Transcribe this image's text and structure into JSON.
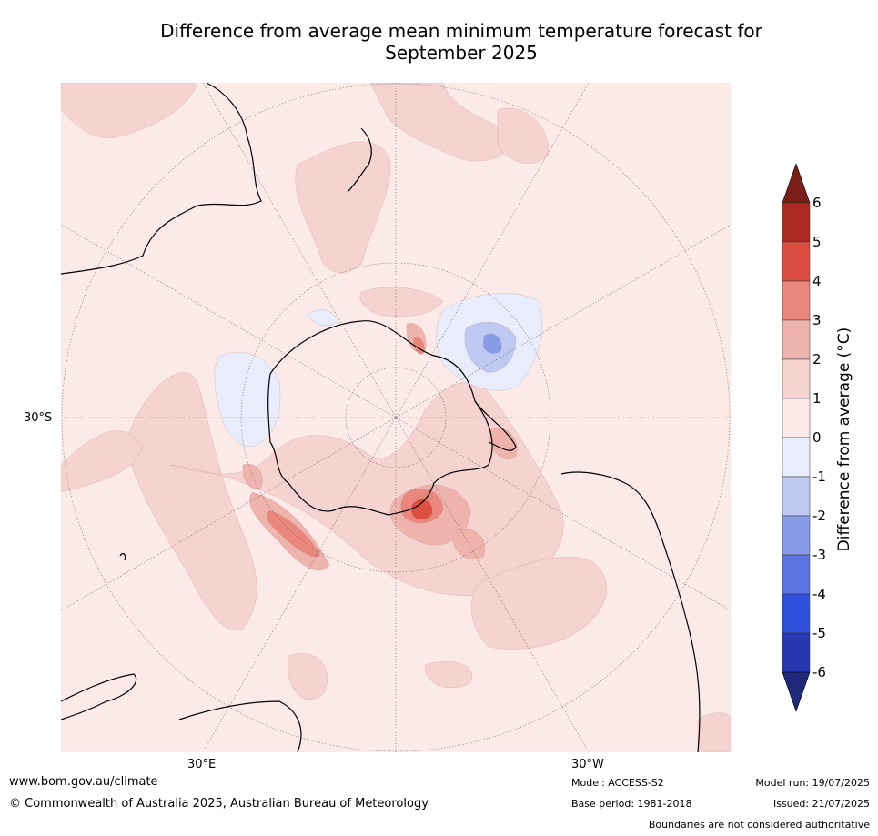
{
  "title_line1": "Difference from average mean minimum temperature forecast for",
  "title_line2": "September 2025",
  "map": {
    "projection": "south polar stereographic",
    "lat_label": "30°S",
    "lon_labels": [
      "30°E",
      "30°W"
    ],
    "colors": {
      "background": "#fbeae8",
      "anom_1_2": "#f5d3d0",
      "anom_2_3": "#efb3ad",
      "anom_3_4": "#e9877d",
      "anom_4_5": "#dc4e41",
      "anom_neg_0_1": "#e8ecfb",
      "anom_neg_1_2": "#bfc8f0",
      "anom_neg_2_3": "#8a9be8",
      "land_outline": "#000000",
      "graticule": "#555555"
    }
  },
  "colorbar": {
    "label": "Difference from average (°C)",
    "ticks": [
      "6",
      "5",
      "4",
      "3",
      "2",
      "1",
      "0",
      "-1",
      "-2",
      "-3",
      "-4",
      "-5",
      "-6"
    ],
    "colors": [
      "#ab2a22",
      "#dc4e41",
      "#e9877d",
      "#efb3ad",
      "#f5d3d0",
      "#fbeae8",
      "#e8ecfb",
      "#bfc8f0",
      "#8a9be8",
      "#5b73e0",
      "#2f4fdd",
      "#2638b0"
    ],
    "over_color": "#7a1f17",
    "under_color": "#1f2a7a"
  },
  "footer": {
    "url": "www.bom.gov.au/climate",
    "copyright": "© Commonwealth of Australia 2025, Australian Bureau of Meteorology",
    "model": "Model: ACCESS-S2",
    "base_period": "Base period: 1981-2018",
    "model_run": "Model run: 19/07/2025",
    "issued": "Issued: 21/07/2025",
    "disclaimer": "Boundaries are not considered authoritative"
  }
}
